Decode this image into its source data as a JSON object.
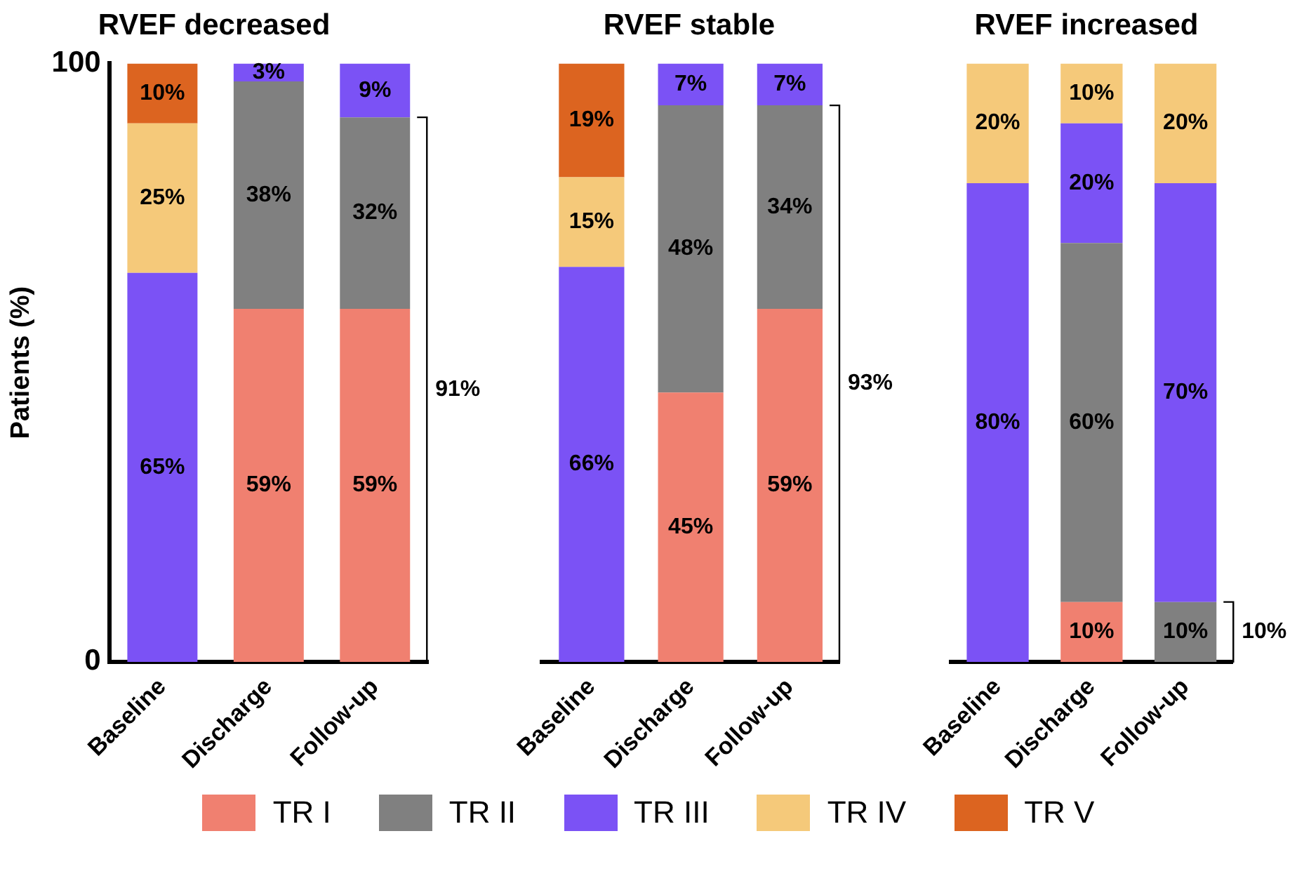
{
  "chart_data": [
    {
      "type": "bar",
      "title": "RVEF decreased",
      "ylabel": "Patients (%)",
      "categories": [
        "Baseline",
        "Discharge",
        "Follow-up"
      ],
      "stacked": true,
      "ylim": [
        0,
        100
      ],
      "yticks": [
        0,
        100
      ],
      "legend": "bottom",
      "series": [
        {
          "name": "TR I",
          "color": "#f08070",
          "values": [
            null,
            59,
            59
          ],
          "value_labels": [
            null,
            "59%",
            "59%"
          ]
        },
        {
          "name": "TR II",
          "color": "#808080",
          "values": [
            null,
            38,
            32
          ],
          "value_labels": [
            null,
            "38%",
            "32%"
          ]
        },
        {
          "name": "TR III",
          "color": "#7b52f5",
          "values": [
            65,
            3,
            9
          ],
          "value_labels": [
            "65%",
            "3%",
            "9%"
          ]
        },
        {
          "name": "TR IV",
          "color": "#f5c97a",
          "values": [
            25,
            null,
            null
          ],
          "value_labels": [
            "25%",
            null,
            null
          ]
        },
        {
          "name": "TR V",
          "color": "#dc6420",
          "values": [
            10,
            null,
            null
          ],
          "value_labels": [
            "10%",
            null,
            null
          ]
        }
      ],
      "annotations": [
        "91%"
      ]
    },
    {
      "type": "bar",
      "title": "RVEF stable",
      "categories": [
        "Baseline",
        "Discharge",
        "Follow-up"
      ],
      "stacked": true,
      "ylim": [
        0,
        100
      ],
      "tick_labels": "x",
      "series": [
        {
          "color": "#f08070",
          "values": [
            null,
            45,
            59
          ],
          "value_labels": [
            null,
            "45%",
            "59%"
          ]
        },
        {
          "color": "#808080",
          "values": [
            null,
            48,
            34
          ],
          "value_labels": [
            null,
            "48%",
            "34%"
          ]
        },
        {
          "color": "#7b52f5",
          "values": [
            66,
            7,
            7
          ],
          "value_labels": [
            "66%",
            "7%",
            "7%"
          ]
        },
        {
          "color": "#f5c97a",
          "values": [
            15,
            null,
            null
          ],
          "value_labels": [
            "15%",
            null,
            null
          ]
        },
        {
          "color": "#dc6420",
          "values": [
            19,
            null,
            null
          ],
          "value_labels": [
            "19%",
            null,
            null
          ]
        }
      ],
      "annotations": [
        "93%"
      ]
    },
    {
      "type": "bar",
      "title": "RVEF increased",
      "categories": [
        "Baseline",
        "Discharge",
        "Follow-up"
      ],
      "stacked": true,
      "ylim": [
        0,
        100
      ],
      "tick_labels": "x",
      "series": [
        {
          "color": "#f08070",
          "values": [
            null,
            10,
            null
          ],
          "value_labels": [
            null,
            "10%",
            null
          ]
        },
        {
          "color": "#808080",
          "values": [
            null,
            60,
            10
          ],
          "value_labels": [
            null,
            "60%",
            "10%"
          ]
        },
        {
          "color": "#7b52f5",
          "values": [
            80,
            20,
            70
          ],
          "value_labels": [
            "80%",
            "20%",
            "70%"
          ]
        },
        {
          "color": "#f5c97a",
          "values": [
            20,
            10,
            20
          ],
          "value_labels": [
            "20%",
            "10%",
            "20%"
          ]
        }
      ],
      "annotations": [
        "10%"
      ]
    }
  ]
}
